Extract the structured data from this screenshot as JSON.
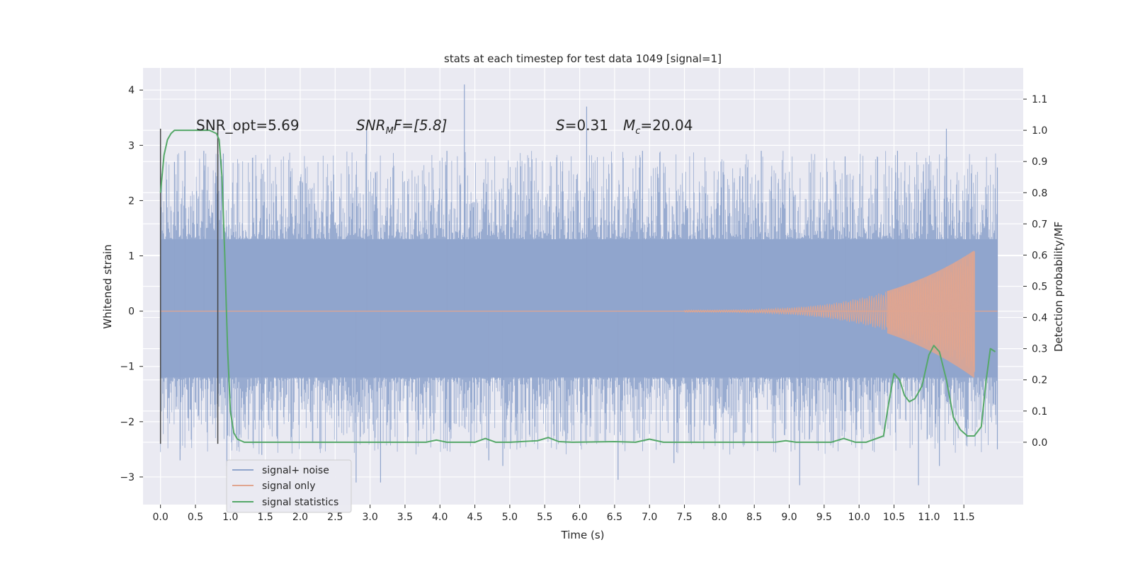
{
  "chart_data": {
    "type": "line",
    "title": "stats at each timestep for test data 1049 [signal=1]",
    "xlabel": "Time (s)",
    "ylabel_left": "Whitened strain",
    "ylabel_right": "Detection probability/MF",
    "xlim": [
      -0.25,
      12.35
    ],
    "xticks": [
      0.0,
      0.5,
      1.0,
      1.5,
      2.0,
      2.5,
      3.0,
      3.5,
      4.0,
      4.5,
      5.0,
      5.5,
      6.0,
      6.5,
      7.0,
      7.5,
      8.0,
      8.5,
      9.0,
      9.5,
      10.0,
      10.5,
      11.0,
      11.5
    ],
    "xtick_labels": [
      "0.0",
      "0.5",
      "1.0",
      "1.5",
      "2.0",
      "2.5",
      "3.0",
      "3.5",
      "4.0",
      "4.5",
      "5.0",
      "5.5",
      "6.0",
      "6.5",
      "7.0",
      "7.5",
      "8.0",
      "8.5",
      "9.0",
      "9.5",
      "10.0",
      "10.5",
      "11.0",
      "11.5"
    ],
    "ylim_left": [
      -3.5,
      4.4
    ],
    "yticks_left": [
      -3,
      -2,
      -1,
      0,
      1,
      2,
      3,
      4
    ],
    "ytick_labels_left": [
      "−3",
      "−2",
      "−1",
      "0",
      "1",
      "2",
      "3",
      "4"
    ],
    "ylim_right": [
      -0.2,
      1.2
    ],
    "yticks_right": [
      0.0,
      0.1,
      0.2,
      0.3,
      0.4,
      0.5,
      0.6,
      0.7,
      0.8,
      0.9,
      1.0,
      1.1
    ],
    "ytick_labels_right": [
      "0.0",
      "0.1",
      "0.2",
      "0.3",
      "0.4",
      "0.5",
      "0.6",
      "0.7",
      "0.8",
      "0.9",
      "1.0",
      "1.1"
    ],
    "grid": true,
    "legend_position": "lower-left",
    "legend": [
      {
        "name": "signal+ noise",
        "color": "#8fa4cc"
      },
      {
        "name": "signal only",
        "color": "#e0a58f"
      },
      {
        "name": "signal statistics",
        "color": "#55a868"
      }
    ],
    "annotations": {
      "snr_opt": "SNR_opt=5.69",
      "snr_mf_base": "SNR",
      "snr_mf_sub": "M",
      "snr_mf_rest": "F=[5.8]",
      "s_label": "S",
      "s_value": "=0.31",
      "mc_base": "M",
      "mc_sub": "c",
      "mc_value": "=20.04"
    },
    "vertical_markers": [
      {
        "x": 0.0,
        "y_range": [
          -2.4,
          3.3
        ]
      },
      {
        "x": 0.82,
        "y_range": [
          -2.4,
          3.3
        ]
      }
    ],
    "series": [
      {
        "name": "signal+ noise",
        "axis": "left",
        "kind": "noise-band",
        "x_range": [
          0.0,
          11.98
        ],
        "band_min": -3.15,
        "band_max": 4.1,
        "envelope_low": -1.2,
        "envelope_high": 1.3,
        "spikes": [
          {
            "x": 0.2,
            "y": 2.7
          },
          {
            "x": 0.35,
            "y": 2.9
          },
          {
            "x": 0.28,
            "y": -2.7
          },
          {
            "x": 0.62,
            "y": 2.9
          },
          {
            "x": 0.9,
            "y": 2.85
          },
          {
            "x": 0.95,
            "y": -2.8
          },
          {
            "x": 1.45,
            "y": -2.6
          },
          {
            "x": 2.95,
            "y": 3.3
          },
          {
            "x": 2.8,
            "y": -3.1
          },
          {
            "x": 3.15,
            "y": -3.1
          },
          {
            "x": 4.35,
            "y": 4.1
          },
          {
            "x": 4.1,
            "y": 2.9
          },
          {
            "x": 4.7,
            "y": -2.7
          },
          {
            "x": 4.9,
            "y": -2.8
          },
          {
            "x": 6.1,
            "y": 3.7
          },
          {
            "x": 6.55,
            "y": -3.05
          },
          {
            "x": 6.9,
            "y": 2.9
          },
          {
            "x": 7.35,
            "y": -2.75
          },
          {
            "x": 8.6,
            "y": 2.9
          },
          {
            "x": 9.15,
            "y": -3.15
          },
          {
            "x": 9.8,
            "y": 2.8
          },
          {
            "x": 10.55,
            "y": 2.9
          },
          {
            "x": 10.85,
            "y": -3.15
          },
          {
            "x": 11.25,
            "y": 3.3
          },
          {
            "x": 11.15,
            "y": -2.8
          },
          {
            "x": 11.98,
            "y": 2.6
          },
          {
            "x": 11.98,
            "y": -2.5
          }
        ]
      },
      {
        "name": "signal only",
        "axis": "left",
        "kind": "chirp",
        "x_start": 7.5,
        "x_peak": 11.65,
        "x_end": 11.98,
        "peak_amplitude": 1.08
      },
      {
        "name": "signal statistics",
        "axis": "right",
        "kind": "line",
        "x": [
          0.0,
          0.05,
          0.1,
          0.15,
          0.2,
          0.3,
          0.5,
          0.7,
          0.8,
          0.84,
          0.88,
          0.92,
          0.96,
          1.0,
          1.05,
          1.1,
          1.2,
          3.8,
          3.95,
          4.1,
          4.5,
          4.65,
          4.8,
          5.0,
          5.4,
          5.55,
          5.7,
          5.9,
          6.5,
          6.8,
          7.0,
          7.2,
          8.0,
          8.8,
          8.95,
          9.1,
          9.6,
          9.78,
          9.95,
          10.1,
          10.35,
          10.42,
          10.5,
          10.58,
          10.65,
          10.72,
          10.8,
          10.9,
          11.0,
          11.07,
          11.15,
          11.25,
          11.35,
          11.45,
          11.55,
          11.65,
          11.75,
          11.82,
          11.88,
          11.95
        ],
        "y": [
          0.8,
          0.92,
          0.97,
          0.99,
          1.0,
          1.0,
          1.0,
          1.0,
          0.99,
          0.97,
          0.85,
          0.6,
          0.3,
          0.1,
          0.03,
          0.01,
          0.0,
          0.0,
          0.007,
          0.0,
          0.0,
          0.012,
          0.0,
          0.0,
          0.005,
          0.015,
          0.002,
          0.0,
          0.002,
          0.0,
          0.01,
          0.0,
          0.0,
          0.0,
          0.005,
          0.0,
          0.0,
          0.012,
          0.0,
          0.0,
          0.02,
          0.12,
          0.22,
          0.2,
          0.15,
          0.13,
          0.14,
          0.18,
          0.28,
          0.31,
          0.29,
          0.2,
          0.08,
          0.04,
          0.02,
          0.02,
          0.05,
          0.2,
          0.3,
          0.29
        ]
      }
    ]
  }
}
